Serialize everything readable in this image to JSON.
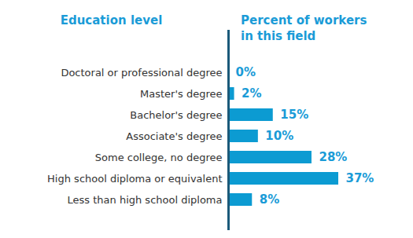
{
  "chart_data": {
    "type": "bar",
    "orientation": "horizontal",
    "ylabel": "Education level",
    "xlabel": "Percent of workers in this field",
    "categories": [
      "Doctoral or professional degree",
      "Master's degree",
      "Bachelor's degree",
      "Associate's degree",
      "Some college, no degree",
      "High school diploma or equivalent",
      "Less than high school diploma"
    ],
    "values": [
      0,
      2,
      15,
      10,
      28,
      37,
      8
    ],
    "value_labels": [
      "0%",
      "2%",
      "15%",
      "10%",
      "28%",
      "37%",
      "8%"
    ],
    "color": "#0c9bd2",
    "data_labels": true,
    "tick_labels": "y"
  }
}
